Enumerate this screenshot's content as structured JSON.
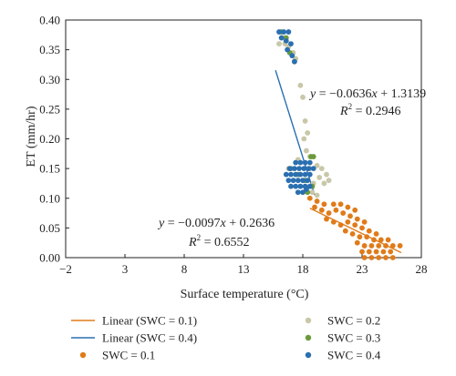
{
  "chart_data": {
    "type": "scatter",
    "xlabel": "Surface temperature (°C)",
    "ylabel": "ET (mm/hr)",
    "xlim": [
      -2,
      28
    ],
    "ylim": [
      0,
      0.4
    ],
    "xticks": [
      -2,
      3,
      8,
      13,
      18,
      23,
      28
    ],
    "xtick_labels": [
      "−2",
      "3",
      "8",
      "13",
      "18",
      "23",
      "28"
    ],
    "yticks": [
      0,
      0.05,
      0.1,
      0.15,
      0.2,
      0.25,
      0.3,
      0.35,
      0.4
    ],
    "ytick_labels": [
      "0.00",
      "0.05",
      "0.10",
      "0.15",
      "0.20",
      "0.25",
      "0.30",
      "0.35",
      "0.40"
    ],
    "colors": {
      "swc01": "#e07b1a",
      "swc02": "#c8c7a8",
      "swc03": "#6a9a3a",
      "swc04": "#2a6fb0"
    },
    "series": [
      {
        "name": "SWC = 0.1",
        "key": "swc01",
        "points": [
          [
            18.6,
            0.1
          ],
          [
            19.2,
            0.095
          ],
          [
            19.8,
            0.09
          ],
          [
            20.6,
            0.09
          ],
          [
            21.2,
            0.09
          ],
          [
            21.8,
            0.085
          ],
          [
            22.4,
            0.08
          ],
          [
            19.0,
            0.085
          ],
          [
            19.6,
            0.08
          ],
          [
            20.2,
            0.075
          ],
          [
            20.8,
            0.08
          ],
          [
            21.4,
            0.075
          ],
          [
            22.0,
            0.07
          ],
          [
            22.6,
            0.065
          ],
          [
            23.2,
            0.06
          ],
          [
            20.0,
            0.065
          ],
          [
            20.6,
            0.06
          ],
          [
            21.2,
            0.055
          ],
          [
            21.8,
            0.06
          ],
          [
            22.4,
            0.055
          ],
          [
            23.0,
            0.05
          ],
          [
            23.6,
            0.045
          ],
          [
            24.2,
            0.04
          ],
          [
            21.6,
            0.045
          ],
          [
            22.2,
            0.04
          ],
          [
            22.8,
            0.035
          ],
          [
            23.4,
            0.035
          ],
          [
            24.0,
            0.03
          ],
          [
            24.6,
            0.03
          ],
          [
            25.2,
            0.03
          ],
          [
            22.6,
            0.025
          ],
          [
            23.2,
            0.02
          ],
          [
            23.8,
            0.02
          ],
          [
            24.4,
            0.02
          ],
          [
            25.0,
            0.02
          ],
          [
            25.6,
            0.02
          ],
          [
            26.2,
            0.02
          ],
          [
            23.0,
            0.01
          ],
          [
            23.6,
            0.01
          ],
          [
            24.2,
            0.01
          ],
          [
            24.8,
            0.01
          ],
          [
            25.4,
            0.01
          ],
          [
            23.2,
            0.0
          ],
          [
            23.8,
            0.0
          ],
          [
            24.4,
            0.0
          ],
          [
            25.0,
            0.0
          ],
          [
            25.6,
            0.0
          ]
        ]
      },
      {
        "name": "SWC = 0.2",
        "key": "swc02",
        "points": [
          [
            16.0,
            0.36
          ],
          [
            16.5,
            0.36
          ],
          [
            16.8,
            0.355
          ],
          [
            17.2,
            0.345
          ],
          [
            17.4,
            0.335
          ],
          [
            16.4,
            0.37
          ],
          [
            17.8,
            0.29
          ],
          [
            18.0,
            0.27
          ],
          [
            18.2,
            0.23
          ],
          [
            18.4,
            0.21
          ],
          [
            18.1,
            0.2
          ],
          [
            18.3,
            0.18
          ],
          [
            17.6,
            0.165
          ],
          [
            18.6,
            0.17
          ],
          [
            19.2,
            0.155
          ],
          [
            19.6,
            0.15
          ],
          [
            20.0,
            0.14
          ],
          [
            19.4,
            0.135
          ],
          [
            18.9,
            0.125
          ],
          [
            19.8,
            0.125
          ],
          [
            20.2,
            0.13
          ],
          [
            18.8,
            0.11
          ],
          [
            19.2,
            0.105
          ],
          [
            18.6,
            0.15
          ],
          [
            16.8,
            0.15
          ]
        ]
      },
      {
        "name": "SWC = 0.3",
        "key": "swc03",
        "points": [
          [
            16.2,
            0.38
          ],
          [
            16.6,
            0.37
          ],
          [
            16.9,
            0.345
          ],
          [
            17.3,
            0.33
          ],
          [
            18.7,
            0.17
          ],
          [
            18.9,
            0.17
          ],
          [
            17.0,
            0.15
          ],
          [
            17.6,
            0.14
          ],
          [
            18.2,
            0.13
          ],
          [
            18.8,
            0.12
          ],
          [
            18.4,
            0.11
          ]
        ]
      },
      {
        "name": "SWC = 0.4",
        "key": "swc04",
        "points": [
          [
            16.0,
            0.38
          ],
          [
            16.4,
            0.38
          ],
          [
            16.8,
            0.38
          ],
          [
            16.2,
            0.37
          ],
          [
            16.6,
            0.365
          ],
          [
            17.0,
            0.36
          ],
          [
            16.7,
            0.35
          ],
          [
            17.1,
            0.34
          ],
          [
            17.3,
            0.33
          ],
          [
            17.4,
            0.16
          ],
          [
            17.8,
            0.16
          ],
          [
            18.2,
            0.16
          ],
          [
            18.6,
            0.16
          ],
          [
            16.9,
            0.15
          ],
          [
            17.3,
            0.15
          ],
          [
            17.7,
            0.15
          ],
          [
            18.1,
            0.15
          ],
          [
            18.5,
            0.15
          ],
          [
            18.9,
            0.15
          ],
          [
            16.6,
            0.14
          ],
          [
            17.0,
            0.14
          ],
          [
            17.4,
            0.14
          ],
          [
            17.8,
            0.14
          ],
          [
            18.2,
            0.14
          ],
          [
            18.6,
            0.14
          ],
          [
            16.8,
            0.13
          ],
          [
            17.2,
            0.13
          ],
          [
            17.6,
            0.13
          ],
          [
            18.0,
            0.13
          ],
          [
            18.4,
            0.13
          ],
          [
            17.0,
            0.12
          ],
          [
            17.4,
            0.12
          ],
          [
            17.8,
            0.12
          ],
          [
            18.2,
            0.12
          ],
          [
            18.6,
            0.12
          ],
          [
            17.6,
            0.11
          ],
          [
            18.0,
            0.11
          ],
          [
            18.3,
            0.115
          ]
        ]
      }
    ],
    "fits": [
      {
        "name": "Linear (SWC = 0.1)",
        "key": "swc01",
        "slope": -0.0097,
        "intercept": 0.2636,
        "x_range": [
          18.6,
          26.3
        ],
        "equation": "y = −0.0097x + 0.2636",
        "r2": "R² = 0.6552"
      },
      {
        "name": "Linear (SWC = 0.4)",
        "key": "swc04",
        "slope": -0.0636,
        "intercept": 1.3139,
        "x_range": [
          15.7,
          19.0
        ],
        "equation": "y = −0.0636x + 1.3139",
        "r2": "R² = 0.2946"
      }
    ],
    "annotations": {
      "eq_a_pre": "y",
      "eq_a_mid": " = −0.0636",
      "eq_a_x": "x",
      "eq_a_post": " + 1.3139",
      "r2_a_pre": "R",
      "r2_a_sup": "2",
      "r2_a_post": " = 0.2946",
      "eq_b_pre": "y",
      "eq_b_mid": " = −0.0097",
      "eq_b_x": "x",
      "eq_b_post": " + 0.2636",
      "r2_b_pre": "R",
      "r2_b_sup": "2",
      "r2_b_post": " = 0.6552"
    },
    "legend": [
      "Linear (SWC = 0.1)",
      "SWC = 0.2",
      "Linear (SWC = 0.4)",
      "SWC = 0.3",
      "SWC = 0.1",
      "SWC = 0.4"
    ],
    "legend_placement": "bottom"
  }
}
